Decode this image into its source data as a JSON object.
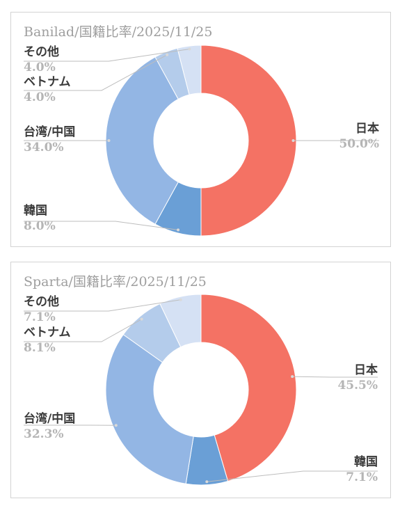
{
  "chart_data": [
    {
      "type": "pie",
      "title": "Banilad/国籍比率/2025/11/25",
      "categories": [
        "日本",
        "韓国",
        "台湾/中国",
        "ベトナム",
        "その他"
      ],
      "values": [
        50.0,
        8.0,
        34.0,
        4.0,
        4.0
      ],
      "value_labels": [
        "50.0%",
        "8.0%",
        "34.0%",
        "4.0%",
        "4.0%"
      ],
      "colors": [
        "#f47264",
        "#6a9fd6",
        "#93b6e4",
        "#b4cceb",
        "#d5e1f4"
      ],
      "hole": "donut",
      "legend": "none"
    },
    {
      "type": "pie",
      "title": "Sparta/国籍比率/2025/11/25",
      "categories": [
        "日本",
        "韓国",
        "台湾/中国",
        "ベトナム",
        "その他"
      ],
      "values": [
        45.5,
        7.1,
        32.3,
        8.1,
        7.1
      ],
      "value_labels": [
        "45.5%",
        "7.1%",
        "32.3%",
        "8.1%",
        "7.1%"
      ],
      "colors": [
        "#f47264",
        "#6a9fd6",
        "#93b6e4",
        "#b4cceb",
        "#d5e1f4"
      ],
      "hole": "donut",
      "legend": "none"
    }
  ]
}
